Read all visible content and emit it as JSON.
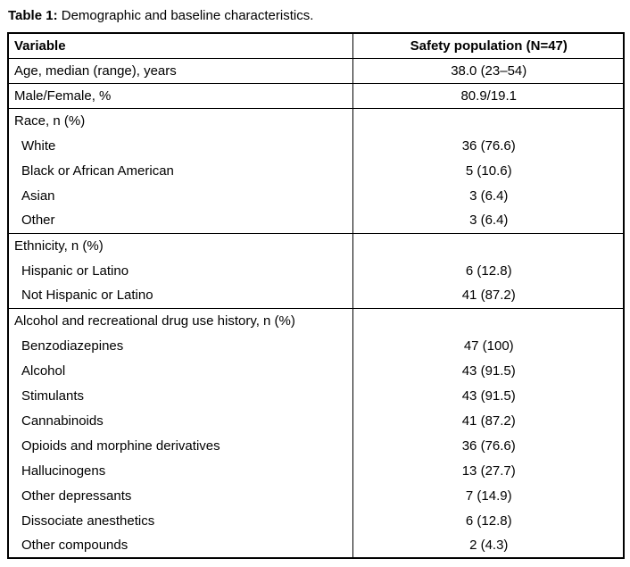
{
  "caption": {
    "label": "Table 1:",
    "text": " Demographic and baseline characteristics."
  },
  "table": {
    "columns": [
      "Variable",
      "Safety population (N=47)"
    ],
    "sections": [
      {
        "rows": [
          {
            "variable": "Age, median (range), years",
            "value": "38.0 (23–54)",
            "indent": false
          }
        ]
      },
      {
        "rows": [
          {
            "variable": "Male/Female, %",
            "value": "80.9/19.1",
            "indent": false
          }
        ]
      },
      {
        "rows": [
          {
            "variable": "Race, n (%)",
            "value": "",
            "indent": false
          },
          {
            "variable": "White",
            "value": "36 (76.6)",
            "indent": true
          },
          {
            "variable": "Black or African American",
            "value": "5 (10.6)",
            "indent": true
          },
          {
            "variable": "Asian",
            "value": "3 (6.4)",
            "indent": true
          },
          {
            "variable": "Other",
            "value": "3 (6.4)",
            "indent": true
          }
        ]
      },
      {
        "rows": [
          {
            "variable": "Ethnicity, n (%)",
            "value": "",
            "indent": false
          },
          {
            "variable": "Hispanic or Latino",
            "value": "6 (12.8)",
            "indent": true
          },
          {
            "variable": "Not Hispanic or Latino",
            "value": "41 (87.2)",
            "indent": true
          }
        ]
      },
      {
        "rows": [
          {
            "variable": "Alcohol and recreational drug use history, n (%)",
            "value": "",
            "indent": false
          },
          {
            "variable": "Benzodiazepines",
            "value": "47 (100)",
            "indent": true
          },
          {
            "variable": "Alcohol",
            "value": "43 (91.5)",
            "indent": true
          },
          {
            "variable": "Stimulants",
            "value": "43 (91.5)",
            "indent": true
          },
          {
            "variable": "Cannabinoids",
            "value": "41 (87.2)",
            "indent": true
          },
          {
            "variable": "Opioids and morphine derivatives",
            "value": "36 (76.6)",
            "indent": true
          },
          {
            "variable": "Hallucinogens",
            "value": "13 (27.7)",
            "indent": true
          },
          {
            "variable": "Other depressants",
            "value": "7 (14.9)",
            "indent": true
          },
          {
            "variable": "Dissociate anesthetics",
            "value": "6 (12.8)",
            "indent": true
          },
          {
            "variable": "Other compounds",
            "value": "2 (4.3)",
            "indent": true
          }
        ]
      }
    ]
  }
}
